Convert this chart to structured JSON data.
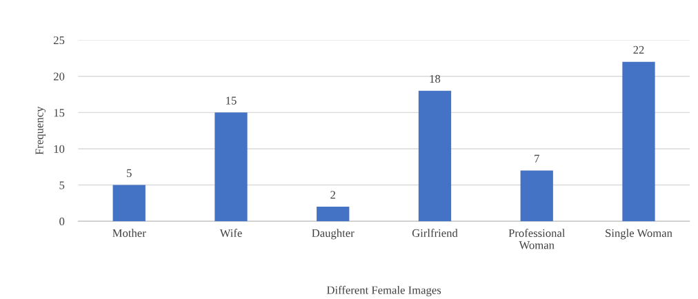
{
  "chart_data": {
    "type": "bar",
    "xlabel": "Different Female Images",
    "ylabel": "Frequency",
    "categories": [
      "Mother",
      "Wife",
      "Daughter",
      "Girlfriend",
      "Professional Woman",
      "Single Woman"
    ],
    "values": [
      5,
      15,
      2,
      18,
      7,
      22
    ],
    "color": "#4472c4",
    "ylim": [
      0,
      25
    ],
    "yticks": [
      0,
      5,
      10,
      15,
      20,
      25
    ],
    "grid": "y",
    "data_labels": true
  }
}
